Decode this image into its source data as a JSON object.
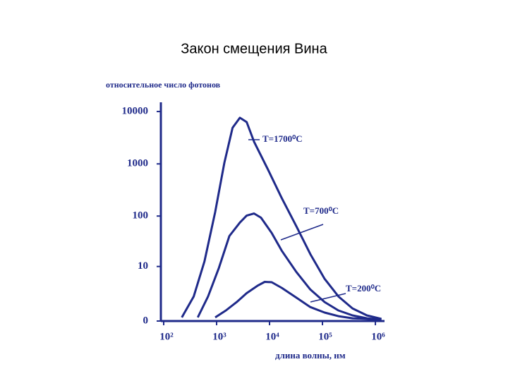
{
  "chart_data": {
    "type": "line",
    "title": "Закон смещения Вина",
    "y_label": "относительное число фотонов",
    "x_label": "длина волны, нм",
    "xscale": "log",
    "yscale": "symlog",
    "xlim": [
      100,
      1400000
    ],
    "ylim": [
      0,
      15000
    ],
    "xticks": [
      {
        "value": 100,
        "label": "10²"
      },
      {
        "value": 1000,
        "label": "10³"
      },
      {
        "value": 10000,
        "label": "10⁴"
      },
      {
        "value": 100000,
        "label": "10⁵"
      },
      {
        "value": 1000000,
        "label": "10⁶"
      }
    ],
    "yticks": [
      0,
      10,
      100,
      1000,
      10000
    ],
    "series": [
      {
        "name": "T=1700⁰C",
        "color": "#1f2a8a",
        "x": [
          220,
          370,
          590,
          940,
          1400,
          2000,
          2750,
          3700,
          5100,
          9400,
          17000,
          32000,
          59000,
          110000,
          200000,
          370000,
          690000,
          1300000
        ],
        "values": [
          0.17,
          1.95,
          12.8,
          120,
          1050,
          4900,
          7600,
          6300,
          2650,
          770,
          222,
          64,
          18,
          5.4,
          1.95,
          0.74,
          0.28,
          0.1
        ]
      },
      {
        "name": "T=700⁰C",
        "color": "#1f2a8a",
        "x": [
          440,
          690,
          1100,
          1740,
          2750,
          3700,
          5100,
          6900,
          11000,
          17000,
          32000,
          59000,
          110000,
          200000,
          370000,
          690000,
          1300000
        ],
        "values": [
          0.17,
          1.95,
          9.2,
          41,
          75,
          102,
          112,
          93,
          47,
          21,
          7.7,
          3.0,
          1.3,
          0.59,
          0.28,
          0.13,
          0.06
        ]
      },
      {
        "name": "T=200⁰C",
        "color": "#1f2a8a",
        "x": [
          940,
          1500,
          2400,
          3700,
          5900,
          8100,
          11000,
          17000,
          32000,
          59000,
          110000,
          200000,
          370000,
          690000,
          1300000
        ],
        "values": [
          0.17,
          0.59,
          1.3,
          2.4,
          3.7,
          4.6,
          4.5,
          3.3,
          1.8,
          0.85,
          0.45,
          0.24,
          0.13,
          0.1,
          0.06
        ]
      }
    ]
  }
}
